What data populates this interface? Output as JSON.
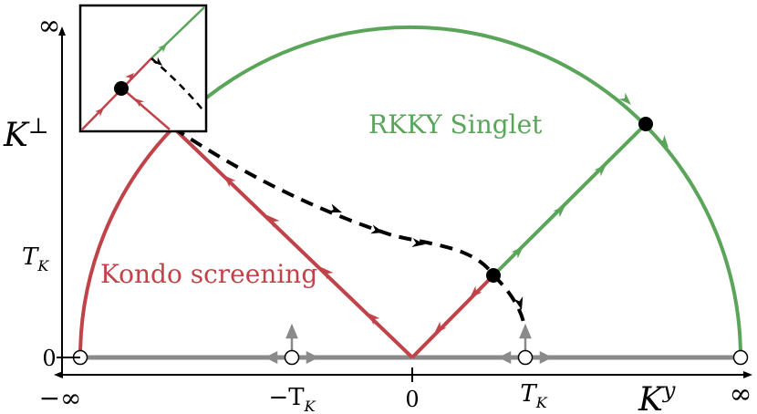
{
  "colors": {
    "green": "#5aa55a",
    "red": "#c0434a",
    "gray": "#8a8a8a",
    "black": "#000000"
  },
  "axes": {
    "x_label": "K",
    "x_label_sup": "y",
    "y_label": "K",
    "y_label_sup": "⊥",
    "x_ticks": {
      "neg_inf": "−∞",
      "neg_tk": "−T",
      "neg_tk_sub": "K",
      "zero": "0",
      "pos_tk": "T",
      "pos_tk_sub": "K",
      "pos_inf": "∞"
    },
    "y_ticks": {
      "inf": "∞",
      "tk": "T",
      "tk_sub": "K",
      "zero": "0"
    }
  },
  "regions": {
    "rkky": "RKKY Singlet",
    "kondo": "Kondo screening"
  },
  "icons": {
    "fixed_point": "filled-circle-icon",
    "unstable_point": "open-circle-icon",
    "flow_arrow": "arrowhead-icon"
  }
}
